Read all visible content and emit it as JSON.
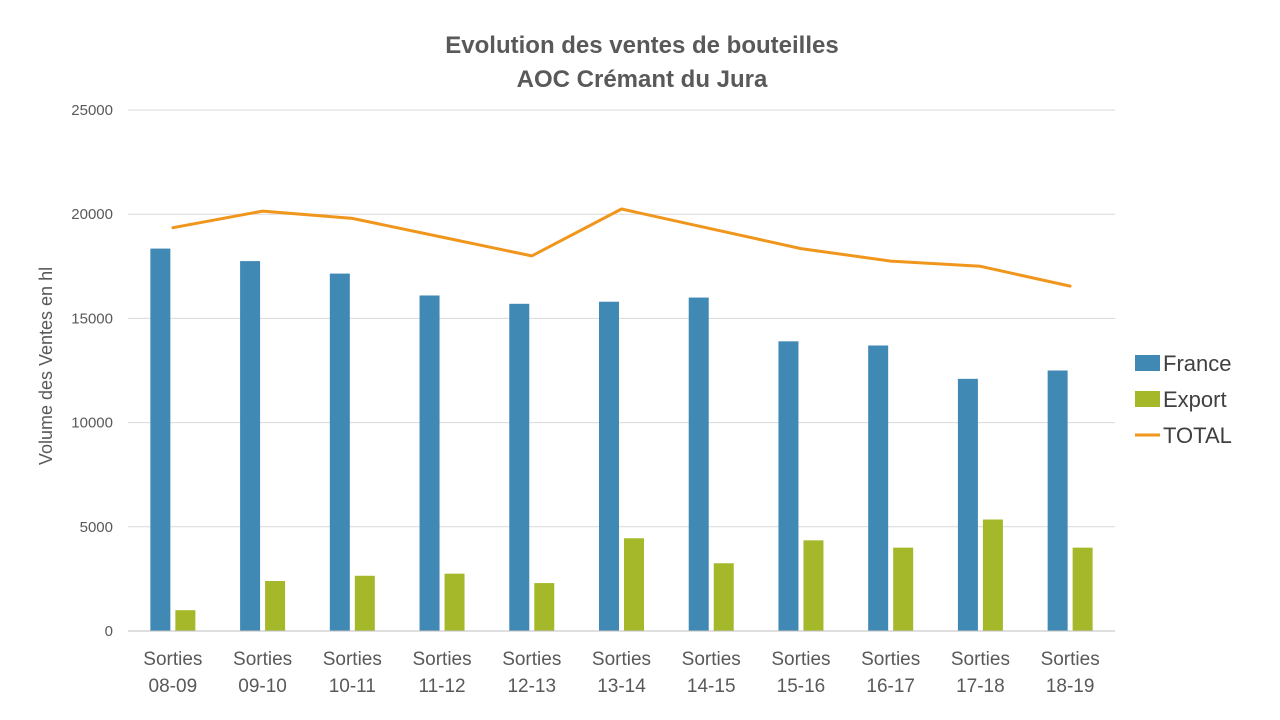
{
  "chart_data": {
    "type": "bar",
    "title": [
      "Evolution des ventes de bouteilles",
      "AOC Crémant du Jura"
    ],
    "ylabel": "Volume des Ventes en hl",
    "xlabel": "",
    "ylim": [
      0,
      25000
    ],
    "yticks": [
      0,
      5000,
      10000,
      15000,
      20000,
      25000
    ],
    "categories": [
      [
        "Sorties",
        "08-09"
      ],
      [
        "Sorties",
        "09-10"
      ],
      [
        "Sorties",
        "10-11"
      ],
      [
        "Sorties",
        "11-12"
      ],
      [
        "Sorties",
        "12-13"
      ],
      [
        "Sorties",
        "13-14"
      ],
      [
        "Sorties",
        "14-15"
      ],
      [
        "Sorties",
        "15-16"
      ],
      [
        "Sorties",
        "16-17"
      ],
      [
        "Sorties",
        "17-18"
      ],
      [
        "Sorties",
        "18-19"
      ]
    ],
    "series": [
      {
        "name": "France",
        "kind": "bar",
        "color": "#4189B5",
        "values": [
          18350,
          17750,
          17150,
          16100,
          15700,
          15800,
          16000,
          13900,
          13700,
          12100,
          12500
        ]
      },
      {
        "name": "Export",
        "kind": "bar",
        "color": "#A5B82A",
        "values": [
          1000,
          2400,
          2650,
          2750,
          2300,
          4450,
          3250,
          4350,
          4000,
          5350,
          4000
        ]
      },
      {
        "name": "TOTAL",
        "kind": "line",
        "color": "#F0961C",
        "values": [
          19350,
          20150,
          19800,
          18900,
          18000,
          20250,
          19300,
          18350,
          17750,
          17500,
          16550
        ]
      }
    ],
    "grid": true,
    "legend_position": "right"
  }
}
